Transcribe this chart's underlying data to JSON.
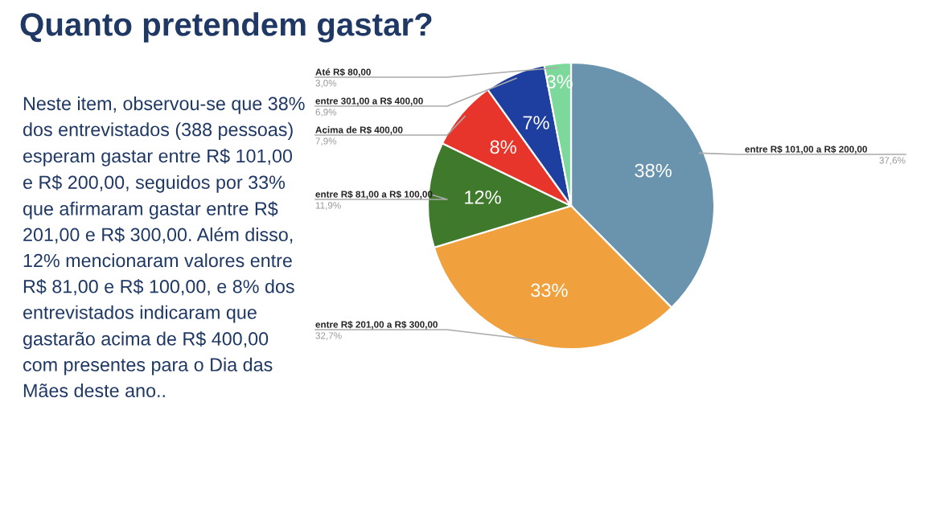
{
  "chart_data": {
    "type": "pie",
    "title": "Quanto pretendem gastar?",
    "categories": [
      "entre R$ 101,00 a R$ 200,00",
      "entre R$ 201,00 a R$ 300,00",
      "entre R$ 81,00 a R$ 100,00",
      "Acima de R$ 400,00",
      "entre 301,00 a R$ 400,00",
      "Até R$ 80,00"
    ],
    "values": [
      37.6,
      32.7,
      11.9,
      7.9,
      6.9,
      3.0
    ],
    "colors": [
      "#6a93ad",
      "#f0a03c",
      "#3f7a2c",
      "#e8352b",
      "#1f3fa0",
      "#7dd89b"
    ],
    "value_labels": [
      "38%",
      "33%",
      "12%",
      "8%",
      "7%",
      "3%"
    ],
    "annotations": [
      {
        "text": "37,6%",
        "x": "entre R$ 101,00 a R$ 200,00"
      },
      {
        "text": "32,7%",
        "x": "entre R$ 201,00 a R$ 300,00"
      },
      {
        "text": "11,9%",
        "x": "entre R$ 81,00 a R$ 100,00"
      },
      {
        "text": "7,9%",
        "x": "Acima de R$ 400,00"
      },
      {
        "text": "6,9%",
        "x": "entre 301,00 a R$ 400,00"
      },
      {
        "text": "3,0%",
        "x": "Até R$ 80,00"
      },
      "Neste item, observou-se que 38% dos entrevistados (388 pessoas) esperam gastar entre R$ 101,00 e R$ 200,00, seguidos por 33% que afirmaram gastar entre R$ 201,00 e R$ 300,00. Além disso, 12% mencionaram valores entre R$ 81,00 e R$ 100,00, e 8% dos entrevistados indicaram que gastarão acima de R$ 400,00 com presentes para o Dia das Mães deste ano.."
    ]
  }
}
